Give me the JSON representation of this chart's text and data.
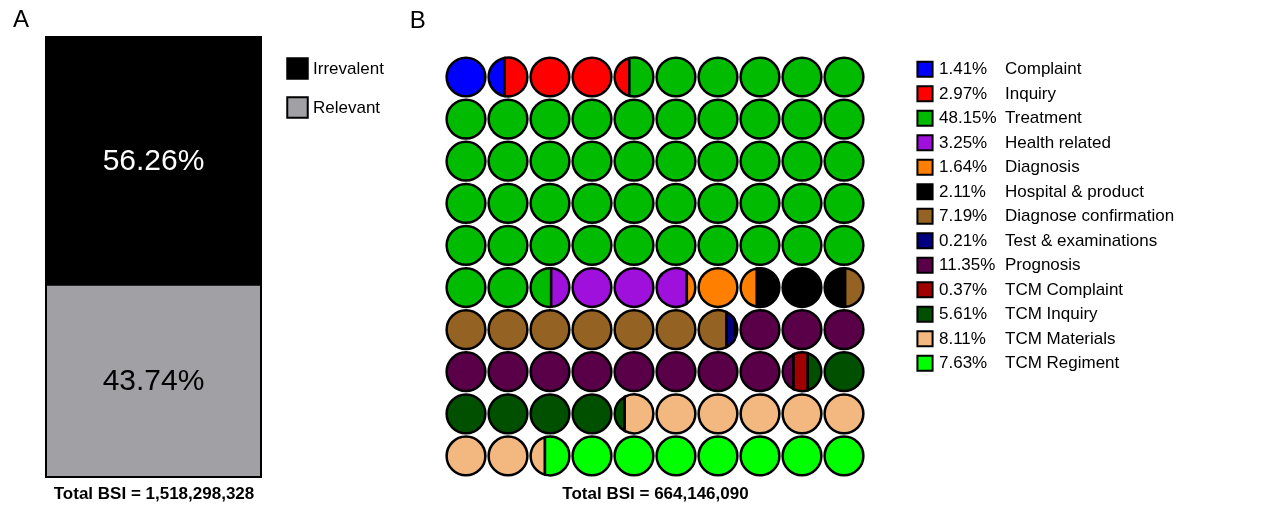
{
  "chart_data": [
    {
      "type": "bar",
      "title": "A",
      "xlabel": "Total BSI = 1,518,298,328",
      "categories": [
        null
      ],
      "stacked": true,
      "tick_labels": false,
      "legend": "right",
      "series": [
        {
          "name": "Relevant",
          "color": "#a0a0a5",
          "values": [
            43.74
          ],
          "value_labels": [
            "43.74%"
          ]
        },
        {
          "name": "Irrevalent",
          "color": "#000000",
          "values": [
            56.26
          ],
          "value_labels": [
            "56.26%"
          ]
        }
      ]
    },
    {
      "type": "other",
      "title": "B",
      "xlabel": "Total BSI = 664,146,090",
      "categories": [
        "Complaint",
        "Inquiry",
        "Treatment",
        "Health related",
        "Diagnosis",
        "Hospital & product",
        "Diagnose confirmation",
        "Test & examinations",
        "Prognosis",
        "TCM Complaint",
        "TCM Inquiry",
        "TCM Materials",
        "TCM Regiment"
      ],
      "values": [
        1.41,
        2.97,
        48.15,
        3.25,
        1.64,
        2.11,
        7.19,
        0.21,
        11.35,
        0.37,
        5.61,
        8.11,
        7.63
      ],
      "value_labels": [
        "1.41%",
        "2.97%",
        "48.15%",
        "3.25%",
        "1.64%",
        "2.11%",
        "7.19%",
        "0.21%",
        "11.35%",
        "0.37%",
        "5.61%",
        "8.11%",
        "7.63%"
      ],
      "colors": [
        "#0000ff",
        "#ff0000",
        "#00bb00",
        "#a010dd",
        "#ff8000",
        "#000000",
        "#946222",
        "#000080",
        "#5a0048",
        "#a00000",
        "#005000",
        "#f2b880",
        "#00ff00"
      ]
    }
  ]
}
